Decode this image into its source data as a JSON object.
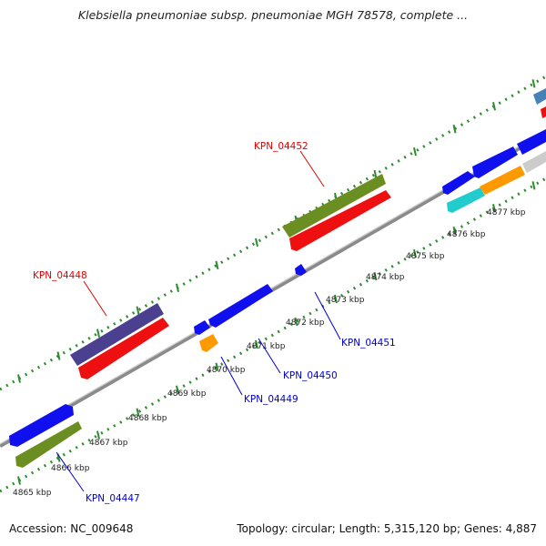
{
  "title": "Klebsiella pneumoniae subsp. pneumoniae MGH 78578, complete ...",
  "footer": {
    "accession": "Accession: NC_009648",
    "summary": "Topology: circular; Length: 5,315,120 bp; Genes: 4,887"
  },
  "tick_labels": [
    "4865 kbp",
    "4866 kbp",
    "4867 kbp",
    "4868 kbp",
    "4869 kbp",
    "4870 kbp",
    "4871 kbp",
    "4872 kbp",
    "4873 kbp",
    "4874 kbp",
    "4875 kbp",
    "4876 kbp",
    "4877 kbp"
  ],
  "gene_labels": [
    {
      "text": "KPN_04447",
      "color": "#0000cc"
    },
    {
      "text": "KPN_04448",
      "color": "#dd0000"
    },
    {
      "text": "KPN_04449",
      "color": "#0000cc"
    },
    {
      "text": "KPN_04450",
      "color": "#0000cc"
    },
    {
      "text": "KPN_04451",
      "color": "#0000cc"
    },
    {
      "text": "KPN_04452",
      "color": "#dd0000"
    }
  ],
  "colors": {
    "backbone": "#999999",
    "dotted_track": "#2e8b2e",
    "cds_blue": "#1010ee",
    "cds_red": "#ee1010",
    "cds_green": "#6b8e23",
    "cds_purple": "#4b3f8f",
    "cds_orange": "#ff9900",
    "cds_cyan": "#22cccc",
    "cds_grey": "#cccccc",
    "cds_steel": "#4682b4"
  }
}
